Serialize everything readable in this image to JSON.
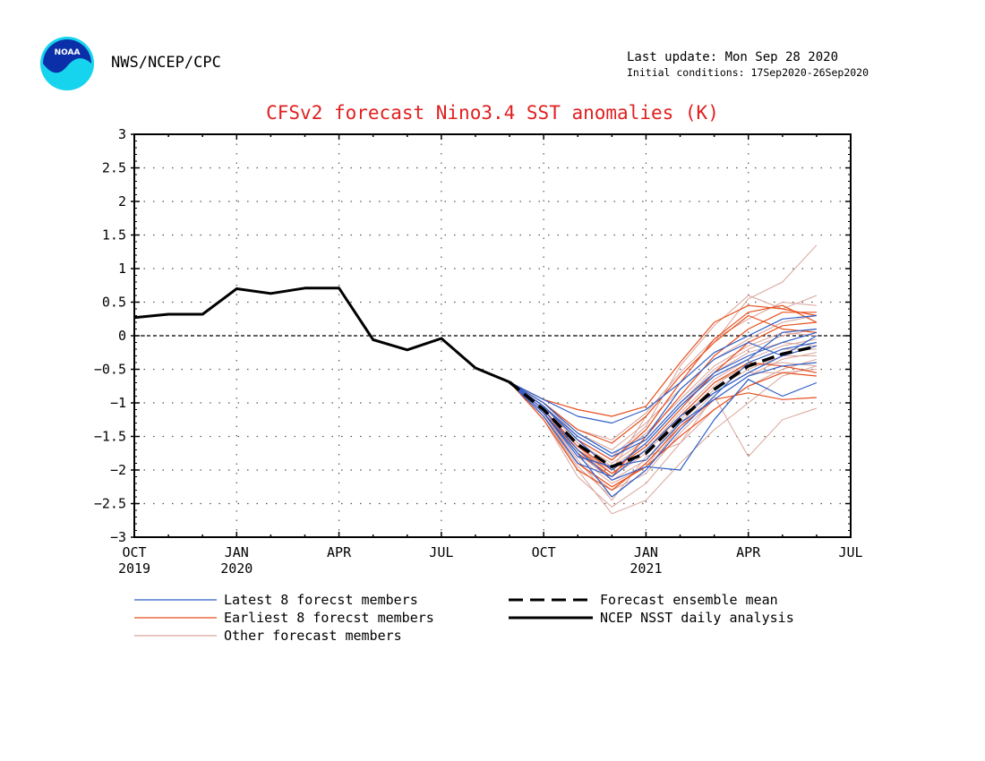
{
  "header": {
    "org": "NWS/NCEP/CPC",
    "last_update": "Last update: Mon Sep 28 2020",
    "initial_conditions": "Initial conditions: 17Sep2020-26Sep2020",
    "logo_text": "NOAA"
  },
  "colors": {
    "title": "#e02020",
    "latest": "#2f5fc8",
    "earliest": "#e8501e",
    "other": "#d9a49a",
    "mean": "#000000",
    "analysis": "#000000"
  },
  "chart_data": {
    "type": "line",
    "title": "CFSv2 forecast Nino3.4 SST anomalies (K)",
    "xlabel": "",
    "ylabel": "",
    "x_unit": "month index (0 = Oct 2019)",
    "xlim": [
      0,
      21
    ],
    "ylim": [
      -3,
      3
    ],
    "yticks": [
      -3,
      -2.5,
      -2,
      -1.5,
      -1,
      -0.5,
      0,
      0.5,
      1,
      1.5,
      2,
      2.5,
      3
    ],
    "ytick_labels": [
      "−3",
      "−2.5",
      "−2",
      "−1.5",
      "−1",
      "−0.5",
      "0",
      "0.5",
      "1",
      "1.5",
      "2",
      "2.5",
      "3"
    ],
    "xticks": [
      {
        "x": 0,
        "label": "OCT",
        "sub": "2019"
      },
      {
        "x": 3,
        "label": "JAN",
        "sub": "2020"
      },
      {
        "x": 6,
        "label": "APR",
        "sub": ""
      },
      {
        "x": 9,
        "label": "JUL",
        "sub": ""
      },
      {
        "x": 12,
        "label": "OCT",
        "sub": ""
      },
      {
        "x": 15,
        "label": "JAN",
        "sub": "2021"
      },
      {
        "x": 18,
        "label": "APR",
        "sub": ""
      },
      {
        "x": 21,
        "label": "JUL",
        "sub": ""
      }
    ],
    "grid": true,
    "zero_line": true,
    "forecast_x": [
      11,
      12,
      13,
      14,
      15,
      16,
      17,
      18,
      19,
      20
    ],
    "series": [
      {
        "name": "NCEP NSST daily analysis",
        "role": "analysis",
        "x": [
          0,
          1,
          2,
          3,
          4,
          5,
          6,
          7,
          8,
          9,
          10,
          11
        ],
        "values": [
          0.27,
          0.32,
          0.32,
          0.7,
          0.63,
          0.71,
          0.71,
          -0.06,
          -0.21,
          -0.04,
          -0.48,
          -0.69
        ]
      },
      {
        "name": "Forecast ensemble mean",
        "role": "mean",
        "values": [
          -0.69,
          -1.1,
          -1.62,
          -1.95,
          -1.75,
          -1.25,
          -0.8,
          -0.45,
          -0.27,
          -0.16
        ]
      },
      {
        "name": "Latest 8 forecst members",
        "role": "latest",
        "members": [
          [
            -0.69,
            -1.05,
            -1.5,
            -1.8,
            -1.55,
            -1.0,
            -0.55,
            -0.3,
            -0.1,
            0.05
          ],
          [
            -0.69,
            -1.15,
            -1.75,
            -2.4,
            -2.0,
            -1.4,
            -0.9,
            -0.4,
            -0.2,
            -0.1
          ],
          [
            -0.69,
            -0.95,
            -1.2,
            -1.3,
            -1.1,
            -0.7,
            -0.25,
            0.0,
            0.25,
            0.3
          ],
          [
            -0.69,
            -1.2,
            -1.9,
            -2.1,
            -1.7,
            -1.2,
            -0.85,
            -0.55,
            -0.3,
            -0.15
          ],
          [
            -0.69,
            -1.1,
            -1.7,
            -2.15,
            -1.95,
            -2.0,
            -1.25,
            -0.65,
            -0.9,
            -0.7
          ],
          [
            -0.69,
            -1.05,
            -1.55,
            -2.0,
            -1.6,
            -1.05,
            -0.6,
            -0.35,
            0.05,
            0.1
          ],
          [
            -0.69,
            -1.15,
            -1.8,
            -1.95,
            -1.85,
            -1.3,
            -0.95,
            -0.6,
            -0.45,
            -0.4
          ],
          [
            -0.69,
            -1.0,
            -1.45,
            -1.75,
            -1.5,
            -0.8,
            -0.35,
            -0.1,
            -0.3,
            0.0
          ]
        ]
      },
      {
        "name": "Earliest 8 forecst members",
        "role": "earliest",
        "members": [
          [
            -0.69,
            -0.95,
            -1.1,
            -1.2,
            -1.05,
            -0.4,
            0.2,
            0.45,
            0.4,
            0.3
          ],
          [
            -0.69,
            -1.1,
            -1.65,
            -2.0,
            -1.65,
            -1.1,
            -0.55,
            -0.1,
            0.15,
            0.2
          ],
          [
            -0.69,
            -1.2,
            -1.9,
            -2.25,
            -1.95,
            -1.5,
            -1.1,
            -0.75,
            -0.55,
            -0.6
          ],
          [
            -0.69,
            -1.15,
            -1.75,
            -2.1,
            -1.5,
            -0.9,
            -0.3,
            0.1,
            0.35,
            0.35
          ],
          [
            -0.69,
            -1.0,
            -1.4,
            -1.6,
            -1.2,
            -0.6,
            -0.1,
            0.3,
            0.1,
            0.05
          ],
          [
            -0.69,
            -1.25,
            -2.0,
            -2.3,
            -1.9,
            -1.35,
            -0.95,
            -0.85,
            -0.95,
            -0.92
          ],
          [
            -0.69,
            -1.05,
            -1.55,
            -1.85,
            -1.4,
            -0.7,
            -0.05,
            0.35,
            0.45,
            0.2
          ],
          [
            -0.69,
            -1.15,
            -1.7,
            -2.05,
            -1.7,
            -1.2,
            -0.7,
            -0.4,
            -0.45,
            -0.55
          ]
        ]
      },
      {
        "name": "Other forecast members",
        "role": "other",
        "members": [
          [
            -0.69,
            -1.2,
            -2.0,
            -2.65,
            -2.45,
            -1.9,
            -1.4,
            -1.0,
            -0.6,
            -0.45
          ],
          [
            -0.69,
            -1.1,
            -1.7,
            -2.0,
            -1.2,
            -0.6,
            -0.1,
            0.55,
            0.8,
            1.35
          ],
          [
            -0.69,
            -1.15,
            -1.85,
            -2.45,
            -1.8,
            -1.6,
            -0.9,
            -1.8,
            -1.25,
            -1.08
          ],
          [
            -0.69,
            -1.0,
            -1.5,
            -1.8,
            -1.35,
            -0.45,
            0.15,
            0.6,
            0.4,
            0.6
          ],
          [
            -0.69,
            -1.05,
            -1.6,
            -1.9,
            -1.55,
            -1.0,
            -0.5,
            -0.2,
            0.0,
            0.1
          ],
          [
            -0.69,
            -1.25,
            -2.1,
            -2.55,
            -2.2,
            -1.6,
            -1.1,
            -0.75,
            -0.5,
            -0.35
          ],
          [
            -0.69,
            -1.1,
            -1.75,
            -2.15,
            -1.85,
            -1.25,
            -0.75,
            -0.4,
            -0.2,
            -0.2
          ],
          [
            -0.69,
            -1.0,
            -1.45,
            -1.7,
            -1.3,
            -0.8,
            -0.35,
            -0.05,
            0.2,
            0.3
          ],
          [
            -0.69,
            -1.15,
            -1.9,
            -2.3,
            -2.05,
            -1.45,
            -0.95,
            -0.6,
            -0.35,
            -0.25
          ],
          [
            -0.69,
            -1.05,
            -1.55,
            -1.85,
            -1.45,
            -0.95,
            -0.45,
            -0.15,
            0.05,
            0.0
          ],
          [
            -0.69,
            -1.2,
            -1.95,
            -2.4,
            -2.0,
            -1.35,
            -0.85,
            -0.55,
            -0.55,
            -0.5
          ],
          [
            -0.69,
            -1.1,
            -1.65,
            -2.05,
            -1.7,
            -1.15,
            -0.65,
            -0.35,
            -0.15,
            -0.05
          ],
          [
            -0.69,
            -1.0,
            -1.4,
            -1.55,
            -1.15,
            -0.55,
            -0.05,
            0.25,
            0.5,
            0.45
          ],
          [
            -0.69,
            -1.15,
            -1.8,
            -2.2,
            -1.95,
            -1.3,
            -0.8,
            -0.5,
            -0.3,
            -0.3
          ],
          [
            -0.69,
            -1.05,
            -1.6,
            -1.95,
            -1.6,
            -1.05,
            -0.55,
            -0.25,
            -0.1,
            -0.15
          ],
          [
            -0.69,
            -1.1,
            -1.7,
            -2.1,
            -1.75,
            -1.2,
            -0.7,
            -0.45,
            -0.4,
            -0.45
          ]
        ]
      }
    ],
    "legend": [
      {
        "label": "Latest 8 forecst members",
        "role": "latest"
      },
      {
        "label": "Earliest 8 forecst members",
        "role": "earliest"
      },
      {
        "label": "Other forecast members",
        "role": "other"
      },
      {
        "label": "Forecast ensemble mean",
        "role": "mean"
      },
      {
        "label": "NCEP NSST daily analysis",
        "role": "analysis"
      }
    ]
  }
}
